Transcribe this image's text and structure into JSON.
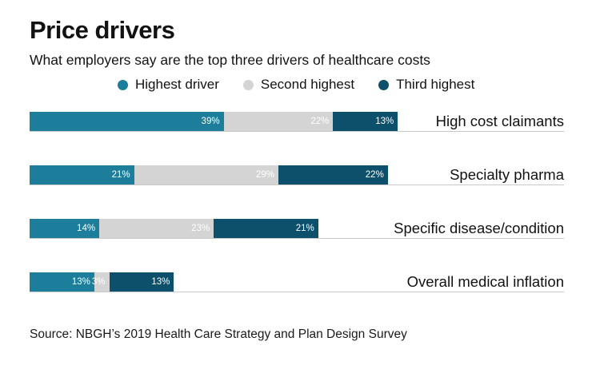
{
  "header": {
    "title": "Price drivers",
    "subtitle": "What employers say are the top three drivers of healthcare costs"
  },
  "legend": [
    {
      "label": "Highest driver",
      "color": "#1c7e9b",
      "icon": "circle-dot"
    },
    {
      "label": "Second highest",
      "color": "#d4d4d4",
      "icon": "circle-dot"
    },
    {
      "label": "Third highest",
      "color": "#0d506c",
      "icon": "circle-dot"
    }
  ],
  "chart_data": {
    "type": "bar",
    "orientation": "horizontal-stacked",
    "title": "Price drivers",
    "subtitle": "What employers say are the top three drivers of healthcare costs",
    "categories": [
      "High cost claimants",
      "Specialty pharma",
      "Specific disease/condition",
      "Overall medical inflation"
    ],
    "series": [
      {
        "name": "Highest driver",
        "color": "#1c7e9b",
        "values": [
          39,
          21,
          14,
          13
        ]
      },
      {
        "name": "Second highest",
        "color": "#d4d4d4",
        "values": [
          22,
          29,
          23,
          3
        ]
      },
      {
        "name": "Third highest",
        "color": "#0d506c",
        "values": [
          13,
          22,
          21,
          13
        ]
      }
    ],
    "value_suffix": "%",
    "xlim": [
      0,
      100
    ],
    "grid": false,
    "legend_position": "top",
    "data_labels": "inside-right-white"
  },
  "source": "Source: NBGH’s 2019 Health Care Strategy and Plan Design Survey"
}
